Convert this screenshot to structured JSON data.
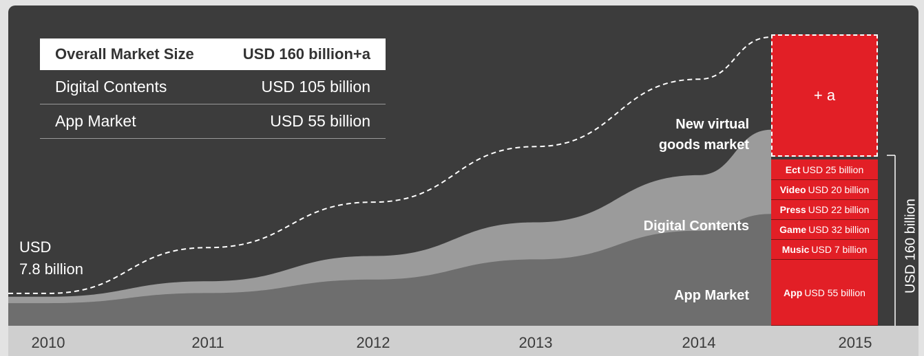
{
  "summary_table": {
    "header": {
      "label": "Overall Market Size",
      "value": "USD 160 billion+a"
    },
    "rows": [
      {
        "label": "Digital Contents",
        "value": "USD 105 billion"
      },
      {
        "label": "App Market",
        "value": "USD 55 billion"
      }
    ]
  },
  "start_label": {
    "line1": "USD",
    "line2": "7.8 billion"
  },
  "area_labels": {
    "virtual": {
      "line1": "New virtual",
      "line2": "goods market"
    },
    "digital": "Digital Contents",
    "app": "App Market"
  },
  "plus_label": "+ a",
  "total_label": "USD 160 billion",
  "colors": {
    "background": "#3c3c3c",
    "digital_area": "#9b9b9b",
    "app_area": "#6e6e6e",
    "stack": "#e21f26",
    "axis_band": "#cfcfcf"
  },
  "chart_data": {
    "type": "area",
    "x": [
      "2010",
      "2011",
      "2012",
      "2013",
      "2014",
      "2015"
    ],
    "series": [
      {
        "name": "App Market",
        "values": [
          2,
          8,
          16,
          28,
          45,
          55
        ]
      },
      {
        "name": "Digital Contents",
        "values": [
          5.8,
          15,
          30,
          50,
          78,
          105
        ]
      },
      {
        "name": "New virtual goods market",
        "values": [
          7.8,
          35,
          62,
          95,
          135,
          160
        ]
      }
    ],
    "stacked_bar_2015": [
      {
        "name": "App",
        "text": "USD 55 billion"
      },
      {
        "name": "Music",
        "text": "USD 7 billion"
      },
      {
        "name": "Game",
        "text": "USD 32 billion"
      },
      {
        "name": "Press",
        "text": "USD 22 billion"
      },
      {
        "name": "Video",
        "text": "USD 20 billion"
      },
      {
        "name": "Ect",
        "text": "USD 25 billion"
      }
    ],
    "xlabel": "",
    "ylabel": ""
  }
}
